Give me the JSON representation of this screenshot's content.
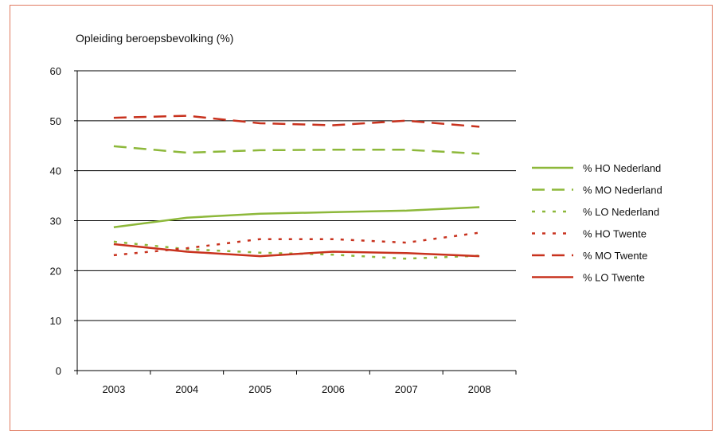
{
  "chart_data": {
    "type": "line",
    "title": "Opleiding beroepsbevolking (%)",
    "xlabel": "",
    "ylabel": "",
    "x": [
      "2003",
      "2004",
      "2005",
      "2006",
      "2007",
      "2008"
    ],
    "ylim": [
      0,
      60
    ],
    "yticks": [
      "0",
      "10",
      "20",
      "30",
      "40",
      "50",
      "60"
    ],
    "grid": "horizontal",
    "legend_position": "right",
    "series": [
      {
        "name": "% HO Nederland",
        "values": [
          28.7,
          30.6,
          31.4,
          31.7,
          32.0,
          32.7
        ],
        "color": "#8db83a",
        "dash": "solid"
      },
      {
        "name": "% MO Nederland",
        "values": [
          44.9,
          43.6,
          44.1,
          44.2,
          44.2,
          43.4
        ],
        "color": "#8db83a",
        "dash": "dash"
      },
      {
        "name": "% LO Nederland",
        "values": [
          25.8,
          24.3,
          23.6,
          23.2,
          22.4,
          23.0
        ],
        "color": "#8db83a",
        "dash": "dot"
      },
      {
        "name": "% HO Twente",
        "values": [
          23.1,
          24.5,
          26.3,
          26.3,
          25.6,
          27.6
        ],
        "color": "#c8321e",
        "dash": "dot"
      },
      {
        "name": "% MO Twente",
        "values": [
          50.6,
          51.0,
          49.5,
          49.1,
          50.0,
          48.8
        ],
        "color": "#c8321e",
        "dash": "dash"
      },
      {
        "name": "% LO Twente",
        "values": [
          25.3,
          23.8,
          22.9,
          23.8,
          23.5,
          22.9
        ],
        "color": "#c8321e",
        "dash": "solid"
      }
    ]
  }
}
